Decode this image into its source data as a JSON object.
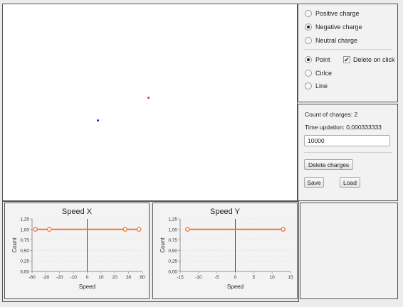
{
  "charge_type_options": [
    {
      "label": "Positive charge",
      "selected": false
    },
    {
      "label": "Negative charge",
      "selected": true
    },
    {
      "label": "Neutral charge",
      "selected": false
    }
  ],
  "shape_options": [
    {
      "label": "Point",
      "selected": true
    },
    {
      "label": "Cirlce",
      "selected": false
    },
    {
      "label": "Line",
      "selected": false
    }
  ],
  "delete_on_click": {
    "label": "Delete on click",
    "checked": true
  },
  "info": {
    "count_text": "Count of charges: 2",
    "time_text": "Time updation: 0,000333333"
  },
  "input_value": "10000",
  "buttons": {
    "delete": "Delete charges",
    "save": "Save",
    "load": "Load"
  },
  "charges": [
    {
      "polarity": "positive",
      "color": "#e03030"
    },
    {
      "polarity": "negative",
      "color": "#2020a0"
    }
  ],
  "chart_data": [
    {
      "type": "line",
      "title": "Speed X",
      "xlabel": "Speed",
      "ylabel": "Count",
      "xlim": [
        -80,
        80
      ],
      "ylim": [
        0,
        1.25
      ],
      "x_tick_labels": [
        "-80",
        "-30",
        "-20",
        "-10",
        "0",
        "10",
        "20",
        "30",
        "80"
      ],
      "y_tick_labels": [
        "0,00",
        "0,25",
        "0,50",
        "0,75",
        "1,00",
        "1,25"
      ],
      "series": [
        {
          "x": [
            -75,
            -55,
            55,
            75
          ],
          "y": [
            1,
            1,
            1,
            1
          ]
        }
      ],
      "color": "#f07830"
    },
    {
      "type": "line",
      "title": "Speed Y",
      "xlabel": "Speed",
      "ylabel": "Count",
      "xlim": [
        -15,
        15
      ],
      "ylim": [
        0,
        1.25
      ],
      "x_tick_labels": [
        "-15",
        "-10",
        "-5",
        "0",
        "5",
        "10",
        "15"
      ],
      "y_tick_labels": [
        "0,00",
        "0,25",
        "0,50",
        "0,75",
        "1,00",
        "1,25"
      ],
      "series": [
        {
          "x": [
            -13,
            13
          ],
          "y": [
            1,
            1
          ]
        }
      ],
      "color": "#f07830"
    }
  ]
}
